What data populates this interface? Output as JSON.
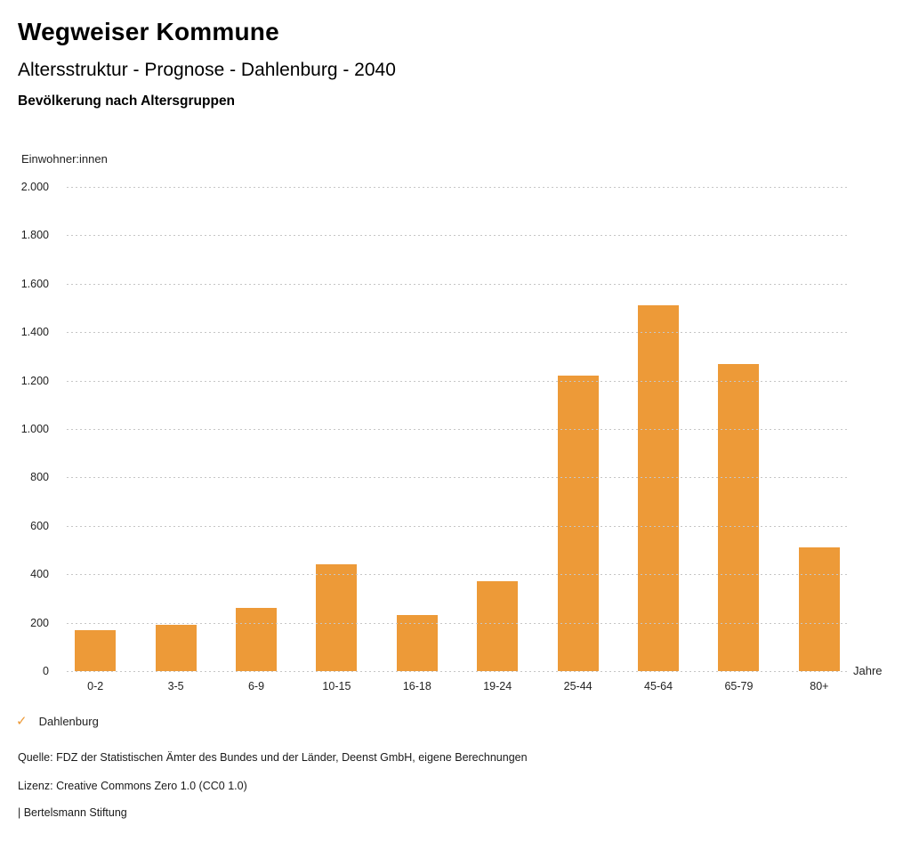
{
  "header": {
    "brand": "Wegweiser Kommune",
    "title": "Altersstruktur - Prognose - Dahlenburg - 2040",
    "subtitle": "Bevölkerung nach Altersgruppen"
  },
  "chart_data": {
    "type": "bar",
    "title": "Bevölkerung nach Altersgruppen",
    "categories": [
      "0-2",
      "3-5",
      "6-9",
      "10-15",
      "16-18",
      "19-24",
      "25-44",
      "45-64",
      "65-79",
      "80+"
    ],
    "values": [
      170,
      190,
      260,
      440,
      230,
      370,
      1220,
      1510,
      1270,
      510
    ],
    "series_name": "Dahlenburg",
    "xlabel": "Jahre",
    "ylabel": "Einwohner:innen",
    "ylim": [
      0,
      2000
    ],
    "ytick_step": 200,
    "yticks_top_to_bottom": [
      "2.000",
      "1.800",
      "1.600",
      "1.400",
      "1.200",
      "1.000",
      "800",
      "600",
      "400",
      "200",
      "0"
    ],
    "grid": "horizontal-dotted",
    "bar_color": "#ED9A38",
    "gridline_color": "#c6c6c6",
    "legend_position": "bottom-left"
  },
  "legend": {
    "check_icon": "✓",
    "check_color": "#ED9A38",
    "label": "Dahlenburg"
  },
  "footer": {
    "source": "Quelle: FDZ der Statistischen Ämter des Bundes und der Länder, Deenst GmbH, eigene Berechnungen",
    "license": "Lizenz: Creative Commons Zero 1.0 (CC0 1.0)",
    "attribution": "| Bertelsmann Stiftung"
  }
}
